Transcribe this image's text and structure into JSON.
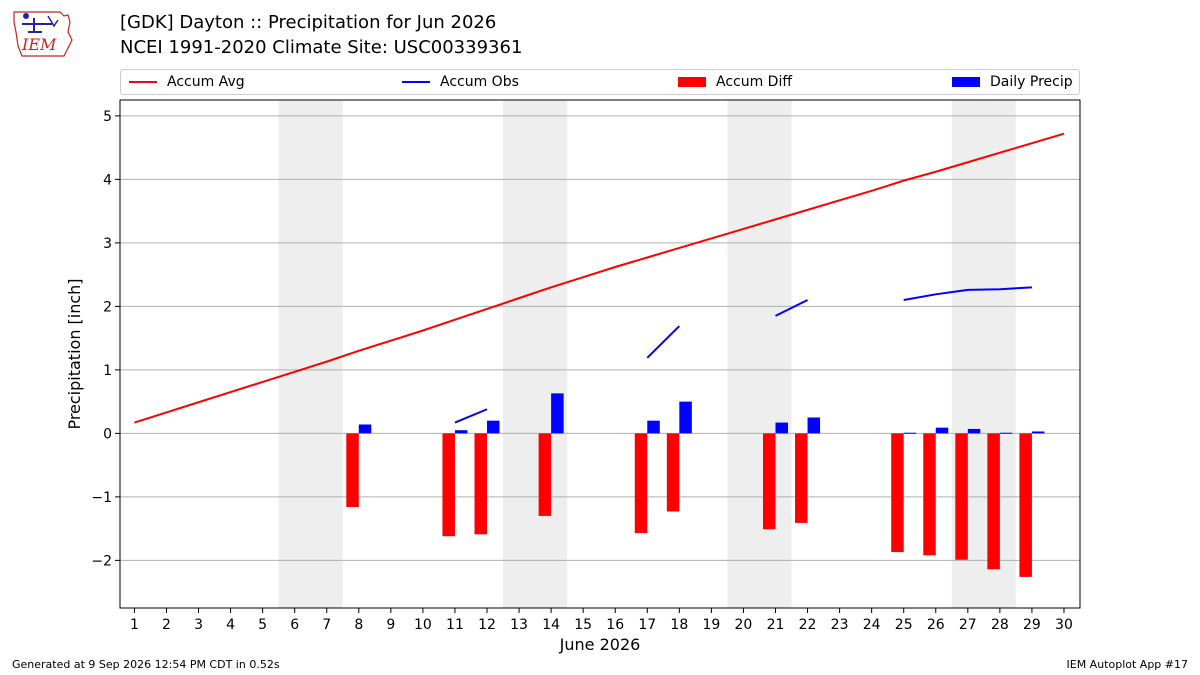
{
  "header": {
    "title_line1": "[GDK] Dayton :: Precipitation for Jun 2026",
    "title_line2": "NCEI 1991-2020 Climate Site: USC00339361"
  },
  "logo": {
    "text": "IEM"
  },
  "footer": {
    "left": "Generated at 9 Sep 2026 12:54 PM CDT in 0.52s",
    "right": "IEM Autoplot App #17"
  },
  "chart_data": {
    "type": "bar",
    "xlabel": "June 2026",
    "ylabel": "Precipitation [inch]",
    "ylim": [
      -2.75,
      5.25
    ],
    "yticks": [
      -2,
      -1,
      0,
      1,
      2,
      3,
      4,
      5
    ],
    "ytick_labels": [
      "−2",
      "−1",
      "0",
      "1",
      "2",
      "3",
      "4",
      "5"
    ],
    "xlim": [
      0.55,
      30.5
    ],
    "x": [
      1,
      2,
      3,
      4,
      5,
      6,
      7,
      8,
      9,
      10,
      11,
      12,
      13,
      14,
      15,
      16,
      17,
      18,
      19,
      20,
      21,
      22,
      23,
      24,
      25,
      26,
      27,
      28,
      29,
      30
    ],
    "xtick_labels": [
      "1",
      "2",
      "3",
      "4",
      "5",
      "6",
      "7",
      "8",
      "9",
      "10",
      "11",
      "12",
      "13",
      "14",
      "15",
      "16",
      "17",
      "18",
      "19",
      "20",
      "21",
      "22",
      "23",
      "24",
      "25",
      "26",
      "27",
      "28",
      "29",
      "30"
    ],
    "weekends": [
      [
        6,
        7
      ],
      [
        13,
        14
      ],
      [
        20,
        21
      ],
      [
        27,
        28
      ]
    ],
    "grid": "horizontal",
    "legend": {
      "placement": "top",
      "entries": [
        "Accum Avg",
        "Accum Obs",
        "Accum Diff",
        "Daily Precip"
      ]
    },
    "colors": {
      "avg": "#ff0000",
      "obs": "#0000ff",
      "diff": "#ff0000",
      "daily": "#0000ff",
      "weekend": "#eeeeee",
      "grid": "#b0b0b0"
    },
    "series": [
      {
        "name": "Accum Avg",
        "kind": "line",
        "values": [
          0.17,
          0.33,
          0.49,
          0.65,
          0.81,
          0.97,
          1.13,
          1.3,
          1.46,
          1.62,
          1.79,
          1.96,
          2.13,
          2.3,
          2.46,
          2.62,
          2.77,
          2.92,
          3.07,
          3.22,
          3.37,
          3.52,
          3.67,
          3.82,
          3.98,
          4.12,
          4.27,
          4.42,
          4.57,
          4.72
        ]
      },
      {
        "name": "Accum Obs",
        "kind": "line",
        "values": [
          null,
          null,
          null,
          null,
          null,
          null,
          null,
          null,
          null,
          null,
          0.17,
          0.38,
          null,
          null,
          null,
          null,
          1.19,
          1.69,
          null,
          null,
          1.85,
          2.1,
          null,
          null,
          2.1,
          2.19,
          2.26,
          2.27,
          2.3,
          null
        ]
      },
      {
        "name": "Accum Diff",
        "kind": "bar",
        "values": [
          null,
          null,
          null,
          null,
          null,
          null,
          null,
          -1.16,
          null,
          null,
          -1.62,
          -1.59,
          null,
          -1.3,
          null,
          null,
          -1.57,
          -1.23,
          null,
          null,
          -1.51,
          -1.41,
          null,
          null,
          -1.87,
          -1.92,
          -1.99,
          -2.14,
          -2.26,
          null
        ]
      },
      {
        "name": "Daily Precip",
        "kind": "bar",
        "values": [
          null,
          null,
          null,
          null,
          null,
          null,
          null,
          0.14,
          null,
          null,
          0.05,
          0.2,
          null,
          0.63,
          null,
          null,
          0.2,
          0.5,
          null,
          null,
          0.17,
          0.25,
          null,
          null,
          0.01,
          0.09,
          0.07,
          0.01,
          0.03,
          null
        ]
      }
    ]
  }
}
